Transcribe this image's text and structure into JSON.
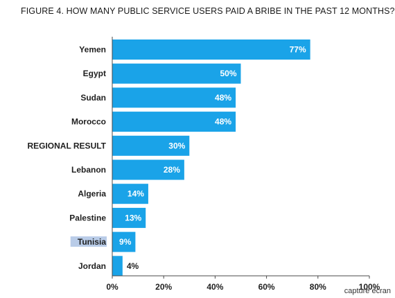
{
  "chart_data": {
    "type": "bar",
    "orientation": "horizontal",
    "title": "FIGURE 4. HOW MANY PUBLIC SERVICE USERS PAID A BRIBE IN THE PAST 12 MONTHS?",
    "categories": [
      "Yemen",
      "Egypt",
      "Sudan",
      "Morocco",
      "REGIONAL RESULT",
      "Lebanon",
      "Algeria",
      "Palestine",
      "Tunisia",
      "Jordan"
    ],
    "values": [
      77,
      50,
      48,
      48,
      30,
      28,
      14,
      13,
      9,
      4
    ],
    "value_labels": [
      "77%",
      "50%",
      "48%",
      "48%",
      "30%",
      "28%",
      "14%",
      "13%",
      "9%",
      "4%"
    ],
    "highlighted_category": "Tunisia",
    "xlim": [
      0,
      100
    ],
    "xticks": [
      0,
      20,
      40,
      60,
      80,
      100
    ],
    "xtick_labels": [
      "0%",
      "20%",
      "40%",
      "60%",
      "80%",
      "100%"
    ],
    "xlabel": "",
    "ylabel": "",
    "grid": false,
    "bar_color": "#1aa3e8",
    "highlight_color": "#b9cce8"
  },
  "caption": "capture écran"
}
